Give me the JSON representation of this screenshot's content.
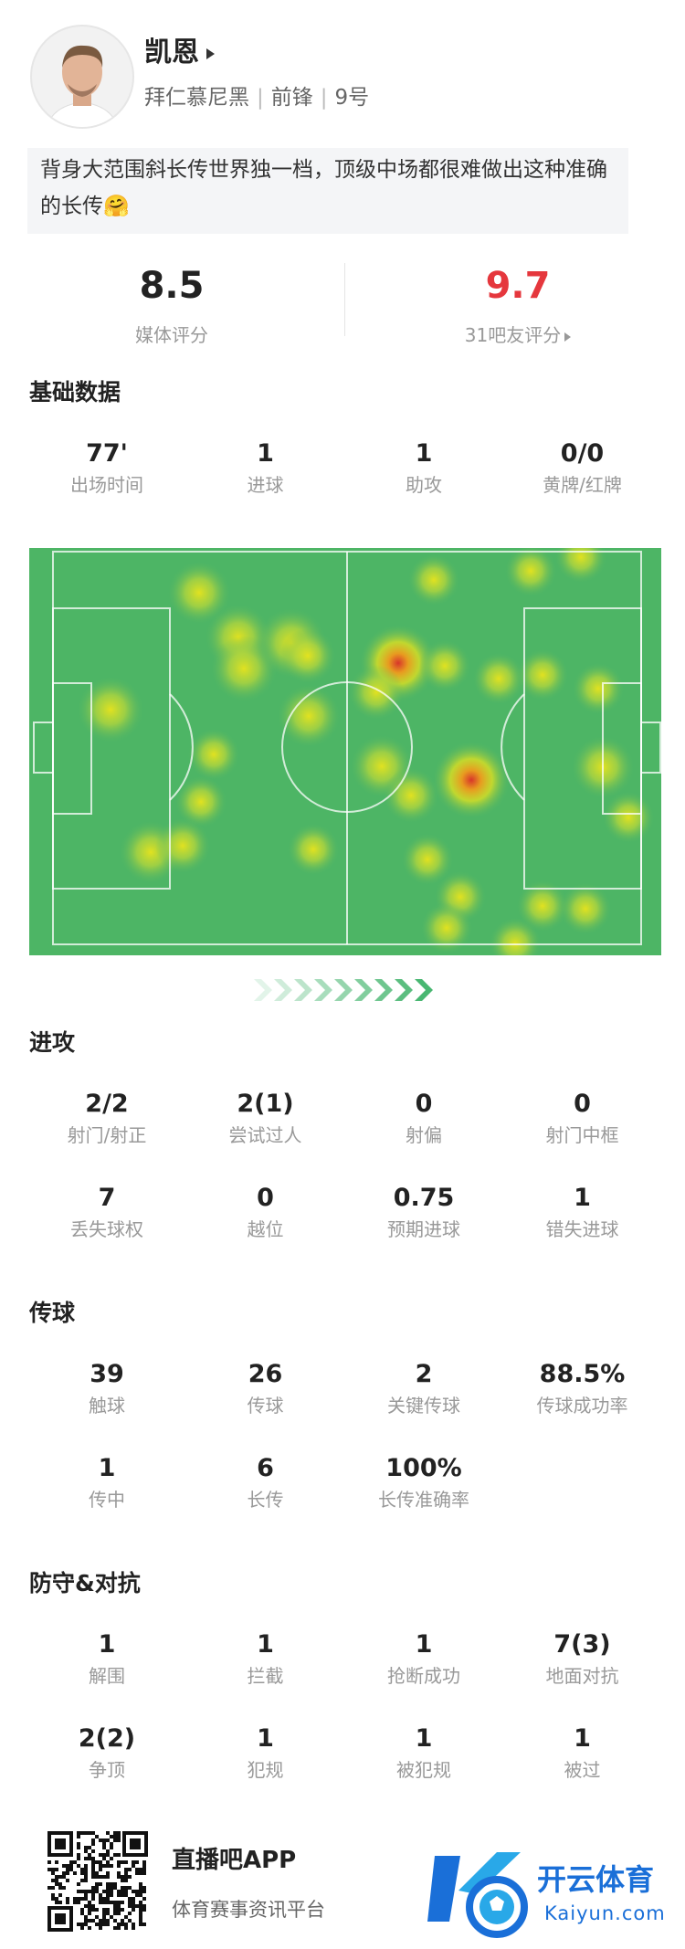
{
  "header": {
    "name": "凯恩",
    "team": "拜仁慕尼黑",
    "position": "前锋",
    "number": "9号"
  },
  "comment": "背身大范围斜长传世界独一档，顶级中场都很难做出这种准确的长传🤗",
  "ratings": [
    {
      "value": "8.5",
      "label": "媒体评分"
    },
    {
      "value": "9.7",
      "label": "31吧友评分"
    }
  ],
  "sections": [
    {
      "title": "基础数据",
      "stats": [
        {
          "value": "77'",
          "label": "出场时间"
        },
        {
          "value": "1",
          "label": "进球"
        },
        {
          "value": "1",
          "label": "助攻"
        },
        {
          "value": "0/0",
          "label": "黄牌/红牌"
        }
      ]
    },
    {
      "title": "进攻",
      "stats": [
        {
          "value": "2/2",
          "label": "射门/射正"
        },
        {
          "value": "2(1)",
          "label": "尝试过人"
        },
        {
          "value": "0",
          "label": "射偏"
        },
        {
          "value": "0",
          "label": "射门中框"
        },
        {
          "value": "7",
          "label": "丢失球权"
        },
        {
          "value": "0",
          "label": "越位"
        },
        {
          "value": "0.75",
          "label": "预期进球"
        },
        {
          "value": "1",
          "label": "错失进球"
        }
      ]
    },
    {
      "title": "传球",
      "stats": [
        {
          "value": "39",
          "label": "触球"
        },
        {
          "value": "26",
          "label": "传球"
        },
        {
          "value": "2",
          "label": "关键传球"
        },
        {
          "value": "88.5%",
          "label": "传球成功率"
        },
        {
          "value": "1",
          "label": "传中"
        },
        {
          "value": "6",
          "label": "长传"
        },
        {
          "value": "100%",
          "label": "长传准确率"
        }
      ]
    },
    {
      "title": "防守&对抗",
      "stats": [
        {
          "value": "1",
          "label": "解围"
        },
        {
          "value": "1",
          "label": "拦截"
        },
        {
          "value": "1",
          "label": "抢断成功"
        },
        {
          "value": "7(3)",
          "label": "地面对抗"
        },
        {
          "value": "2(2)",
          "label": "争顶"
        },
        {
          "value": "1",
          "label": "犯规"
        },
        {
          "value": "1",
          "label": "被犯规"
        },
        {
          "value": "1",
          "label": "被过"
        }
      ]
    }
  ],
  "footer": {
    "app": "直播吧APP",
    "slogan": "体育赛事资讯平台",
    "brand": "开云体育",
    "site": "Kaiyun.com"
  }
}
